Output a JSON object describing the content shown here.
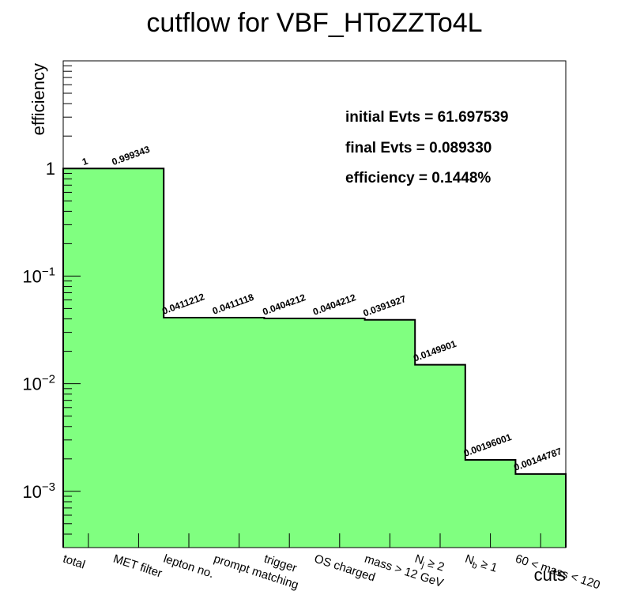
{
  "chart_data": {
    "type": "bar",
    "title": "cutflow for VBF_HToZZTo4L",
    "xlabel": "cuts",
    "ylabel": "efficiency",
    "yscale": "log",
    "ylim": [
      0.0003,
      10
    ],
    "y_tick_labels": [
      {
        "base": "1",
        "exp": "",
        "value": 1
      },
      {
        "base": "10",
        "exp": "−1",
        "value": 0.1
      },
      {
        "base": "10",
        "exp": "−2",
        "value": 0.01
      },
      {
        "base": "10",
        "exp": "−3",
        "value": 0.001
      }
    ],
    "categories": [
      {
        "text": "total",
        "sub": "",
        "tail": ""
      },
      {
        "text": "MET filter",
        "sub": "",
        "tail": ""
      },
      {
        "text": "lepton no.",
        "sub": "",
        "tail": ""
      },
      {
        "text": "prompt matching",
        "sub": "",
        "tail": ""
      },
      {
        "text": "trigger",
        "sub": "",
        "tail": ""
      },
      {
        "text": "OS charged",
        "sub": "",
        "tail": ""
      },
      {
        "text": "mass > 12 GeV",
        "sub": "",
        "tail": ""
      },
      {
        "text": "N",
        "sub": "j",
        "tail": " ≥ 2"
      },
      {
        "text": "N",
        "sub": "b",
        "tail": " ≥ 1"
      },
      {
        "text": "60 < mass < 120",
        "sub": "",
        "tail": ""
      }
    ],
    "values": [
      1,
      0.999343,
      0.0411212,
      0.0411118,
      0.0404212,
      0.0404212,
      0.0391927,
      0.0149901,
      0.00196001,
      0.00144787
    ],
    "value_labels": [
      "1",
      "0.999343",
      "0.0411212",
      "0.0411118",
      "0.0404212",
      "0.0404212",
      "0.0391927",
      "0.0149901",
      "0.00196001",
      "0.00144787"
    ],
    "fill_color": "#80ff80",
    "line_color": "#000000",
    "stats": [
      "initial Evts = 61.697539",
      "final Evts = 0.089330",
      "efficiency = 0.1448%"
    ]
  }
}
